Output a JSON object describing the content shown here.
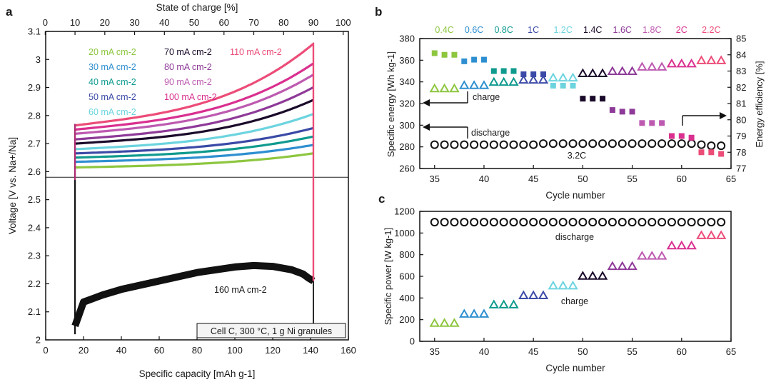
{
  "figure": {
    "panel_labels": [
      "a",
      "b",
      "c"
    ]
  },
  "chart_data": [
    {
      "panel": "a",
      "type": "line",
      "title": "",
      "xlabel": "Specific capacity [mAh g-1]",
      "ylabel": "Voltage [V vs. Na+/Na]",
      "top_xlabel": "State of charge [%]",
      "xlim": [
        0,
        160
      ],
      "ylim": [
        2.0,
        3.1
      ],
      "xticks": [
        0,
        20,
        40,
        60,
        80,
        100,
        120,
        140,
        160
      ],
      "yticks": [
        2,
        2.1,
        2.2,
        2.3,
        2.4,
        2.5,
        2.6,
        2.7,
        2.8,
        2.9,
        3,
        3.1
      ],
      "top_ticks": [
        0,
        10,
        20,
        30,
        40,
        50,
        60,
        70,
        80,
        90,
        100
      ],
      "soc_vertical_lines_at_capacity": [
        15.5,
        141.5
      ],
      "divider_voltage": 2.58,
      "annotation": "Cell C, 300 °C, 1 g Ni granules",
      "discharge_label": "160 mA cm-2",
      "charge_series": [
        {
          "name": "20 mA cm-2",
          "color": "#8dc63f",
          "start_v": 2.615,
          "end_v": 2.665
        },
        {
          "name": "30 mA cm-2",
          "color": "#2e8fd0",
          "start_v": 2.635,
          "end_v": 2.695
        },
        {
          "name": "40 mA cm-2",
          "color": "#0f9a8e",
          "start_v": 2.65,
          "end_v": 2.725
        },
        {
          "name": "50 mA cm-2",
          "color": "#3b4aa6",
          "start_v": 2.665,
          "end_v": 2.755
        },
        {
          "name": "60 mA cm-2",
          "color": "#6cd4df",
          "start_v": 2.68,
          "end_v": 2.805
        },
        {
          "name": "70 mA cm-2",
          "color": "#1a0a2a",
          "start_v": 2.7,
          "end_v": 2.855
        },
        {
          "name": "80 mA cm-2",
          "color": "#8e3a98",
          "start_v": 2.715,
          "end_v": 2.9
        },
        {
          "name": "90 mA cm-2",
          "color": "#bd5ab0",
          "start_v": 2.735,
          "end_v": 2.945
        },
        {
          "name": "100 mA cm-2",
          "color": "#d9308f",
          "start_v": 2.75,
          "end_v": 2.985
        },
        {
          "name": "110 mA cm-2",
          "color": "#ec4c78",
          "start_v": 2.765,
          "end_v": 3.055
        }
      ],
      "discharge_series": {
        "name": "160 mA cm-2",
        "color": "#111111",
        "capacity": [
          15.5,
          20,
          30,
          40,
          50,
          60,
          70,
          80,
          90,
          100,
          110,
          120,
          130,
          136,
          139,
          141.5
        ],
        "voltage": [
          2.05,
          2.135,
          2.16,
          2.18,
          2.195,
          2.21,
          2.225,
          2.24,
          2.25,
          2.26,
          2.265,
          2.262,
          2.25,
          2.235,
          2.22,
          2.21
        ]
      }
    },
    {
      "panel": "b",
      "type": "scatter",
      "xlabel": "Cycle number",
      "ylabel": "Specific energy [Wh kg-1]",
      "ylabel_right": "Energy efficiency [%]",
      "xlim": [
        33.5,
        65
      ],
      "ylim": [
        260,
        380
      ],
      "ylim_right": [
        77,
        85
      ],
      "xticks": [
        35,
        40,
        45,
        50,
        55,
        60,
        65
      ],
      "yticks": [
        260,
        280,
        300,
        320,
        340,
        360,
        380
      ],
      "yticks_right": [
        77,
        78,
        79,
        80,
        81,
        82,
        83,
        84,
        85
      ],
      "c_rates": [
        "0.4C",
        "0.6C",
        "0.8C",
        "1C",
        "1.2C",
        "1.4C",
        "1.6C",
        "1.8C",
        "2C",
        "2.2C"
      ],
      "c_rate_colors": [
        "#8dc63f",
        "#2e8fd0",
        "#0f9a8e",
        "#3b4aa6",
        "#6cd4df",
        "#1a0a2a",
        "#8e3a98",
        "#bd5ab0",
        "#d9308f",
        "#ec4c78"
      ],
      "charge_label": "charge",
      "discharge_label": "discharge",
      "discharge_rate_label": "3.2C",
      "discharge_energy": {
        "cycles": [
          35,
          36,
          37,
          38,
          39,
          40,
          41,
          42,
          43,
          44,
          45,
          46,
          47,
          48,
          49,
          50,
          51,
          52,
          53,
          54,
          55,
          56,
          57,
          58,
          59,
          60,
          61,
          62,
          63,
          64
        ],
        "values": [
          282,
          282,
          282,
          282,
          282,
          282,
          282,
          282,
          282,
          282,
          282,
          283,
          283,
          283,
          283,
          283,
          283,
          283,
          283,
          283,
          283,
          283,
          283,
          283,
          283,
          283,
          283,
          282,
          281,
          281
        ]
      },
      "charge_energy": [
        {
          "cycles": [
            35,
            36,
            37
          ],
          "values": [
            334,
            334,
            334
          ]
        },
        {
          "cycles": [
            38,
            39,
            40
          ],
          "values": [
            337,
            337,
            337
          ]
        },
        {
          "cycles": [
            41,
            42,
            43
          ],
          "values": [
            340,
            340,
            340
          ]
        },
        {
          "cycles": [
            44,
            45,
            46
          ],
          "values": [
            342,
            342,
            342
          ]
        },
        {
          "cycles": [
            47,
            48,
            49
          ],
          "values": [
            344,
            344,
            344
          ]
        },
        {
          "cycles": [
            50,
            51,
            52
          ],
          "values": [
            348,
            348,
            348
          ]
        },
        {
          "cycles": [
            53,
            54,
            55
          ],
          "values": [
            350,
            350,
            350
          ]
        },
        {
          "cycles": [
            56,
            57,
            58
          ],
          "values": [
            354,
            354,
            354
          ]
        },
        {
          "cycles": [
            59,
            60,
            61
          ],
          "values": [
            357,
            357,
            357
          ]
        },
        {
          "cycles": [
            62,
            63,
            64
          ],
          "values": [
            360,
            360,
            360
          ]
        }
      ],
      "energy_efficiency": [
        {
          "cycles": [
            35,
            36,
            37
          ],
          "values": [
            84.1,
            84.0,
            84.0
          ]
        },
        {
          "cycles": [
            38,
            39,
            40
          ],
          "values": [
            83.6,
            83.7,
            83.7
          ]
        },
        {
          "cycles": [
            41,
            42,
            43
          ],
          "values": [
            83.0,
            83.0,
            83.0
          ]
        },
        {
          "cycles": [
            44,
            45,
            46
          ],
          "values": [
            82.8,
            82.8,
            82.8
          ]
        },
        {
          "cycles": [
            47,
            48,
            49
          ],
          "values": [
            82.1,
            82.1,
            82.1
          ]
        },
        {
          "cycles": [
            50,
            51,
            52
          ],
          "values": [
            81.3,
            81.3,
            81.3
          ]
        },
        {
          "cycles": [
            53,
            54,
            55
          ],
          "values": [
            80.6,
            80.5,
            80.5
          ]
        },
        {
          "cycles": [
            56,
            57,
            58
          ],
          "values": [
            79.8,
            79.8,
            79.8
          ]
        },
        {
          "cycles": [
            59,
            60,
            61
          ],
          "values": [
            79.0,
            79.0,
            78.9
          ]
        },
        {
          "cycles": [
            62,
            63,
            64
          ],
          "values": [
            78.0,
            78.0,
            77.9
          ]
        }
      ]
    },
    {
      "panel": "c",
      "type": "scatter",
      "xlabel": "Cycle number",
      "ylabel": "Specific power [W kg-1]",
      "xlim": [
        33.5,
        65
      ],
      "ylim": [
        0,
        1200
      ],
      "xticks": [
        35,
        40,
        45,
        50,
        55,
        60,
        65
      ],
      "yticks": [
        0,
        200,
        400,
        600,
        800,
        1000,
        1200
      ],
      "charge_label": "charge",
      "discharge_label": "discharge",
      "discharge_power": {
        "cycles": [
          35,
          36,
          37,
          38,
          39,
          40,
          41,
          42,
          43,
          44,
          45,
          46,
          47,
          48,
          49,
          50,
          51,
          52,
          53,
          54,
          55,
          56,
          57,
          58,
          59,
          60,
          61,
          62,
          63,
          64
        ],
        "values": [
          1100,
          1100,
          1100,
          1100,
          1100,
          1100,
          1100,
          1100,
          1100,
          1100,
          1100,
          1100,
          1100,
          1100,
          1100,
          1100,
          1100,
          1100,
          1100,
          1100,
          1100,
          1100,
          1100,
          1100,
          1100,
          1100,
          1100,
          1100,
          1100,
          1100
        ]
      },
      "charge_power": [
        {
          "cycles": [
            35,
            36,
            37
          ],
          "values": [
            170,
            170,
            170
          ]
        },
        {
          "cycles": [
            38,
            39,
            40
          ],
          "values": [
            255,
            255,
            255
          ]
        },
        {
          "cycles": [
            41,
            42,
            43
          ],
          "values": [
            340,
            340,
            340
          ]
        },
        {
          "cycles": [
            44,
            45,
            46
          ],
          "values": [
            425,
            425,
            425
          ]
        },
        {
          "cycles": [
            47,
            48,
            49
          ],
          "values": [
            515,
            515,
            515
          ]
        },
        {
          "cycles": [
            50,
            51,
            52
          ],
          "values": [
            605,
            605,
            605
          ]
        },
        {
          "cycles": [
            53,
            54,
            55
          ],
          "values": [
            695,
            695,
            695
          ]
        },
        {
          "cycles": [
            56,
            57,
            58
          ],
          "values": [
            790,
            790,
            790
          ]
        },
        {
          "cycles": [
            59,
            60,
            61
          ],
          "values": [
            885,
            885,
            885
          ]
        },
        {
          "cycles": [
            62,
            63,
            64
          ],
          "values": [
            980,
            980,
            980
          ]
        }
      ]
    }
  ]
}
